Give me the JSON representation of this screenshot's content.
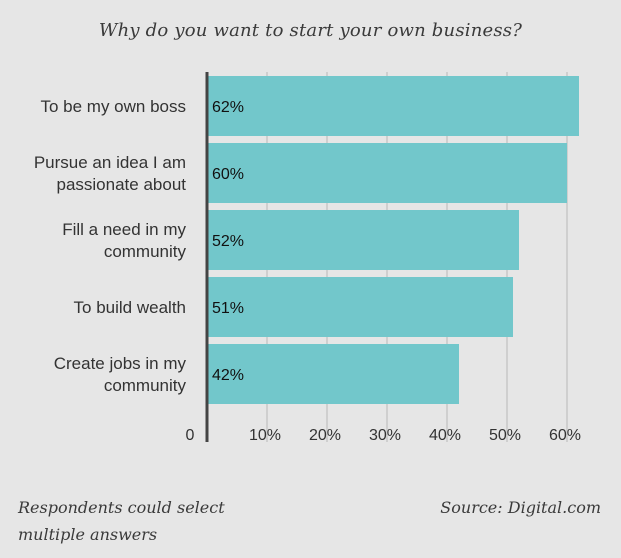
{
  "chart_data": {
    "type": "bar",
    "orientation": "horizontal",
    "title": "Why do you want to start your own business?",
    "categories": [
      "To be my own boss",
      "Pursue an idea I am passionate about",
      "Fill a need in my community",
      "To build wealth",
      "Create jobs in my community"
    ],
    "category_lines": [
      [
        "To be my own boss"
      ],
      [
        "Pursue an idea I am",
        "passionate about"
      ],
      [
        "Fill a need in my",
        "community"
      ],
      [
        "To build wealth"
      ],
      [
        "Create jobs in my",
        "community"
      ]
    ],
    "values": [
      62,
      60,
      52,
      51,
      42
    ],
    "value_labels": [
      "62%",
      "60%",
      "52%",
      "51%",
      "42%"
    ],
    "xticks": [
      0,
      10,
      20,
      30,
      40,
      50,
      60
    ],
    "xtick_labels": [
      "0",
      "10%",
      "20%",
      "30%",
      "40%",
      "50%",
      "60%"
    ],
    "xlim": [
      0,
      62
    ],
    "grid": true,
    "bar_color": "#72c7cb",
    "grid_color": "#cfcfcf",
    "axis_color": "#444444"
  },
  "footer": {
    "note": "Respondents could select multiple answers",
    "source": "Source: Digital.com"
  }
}
